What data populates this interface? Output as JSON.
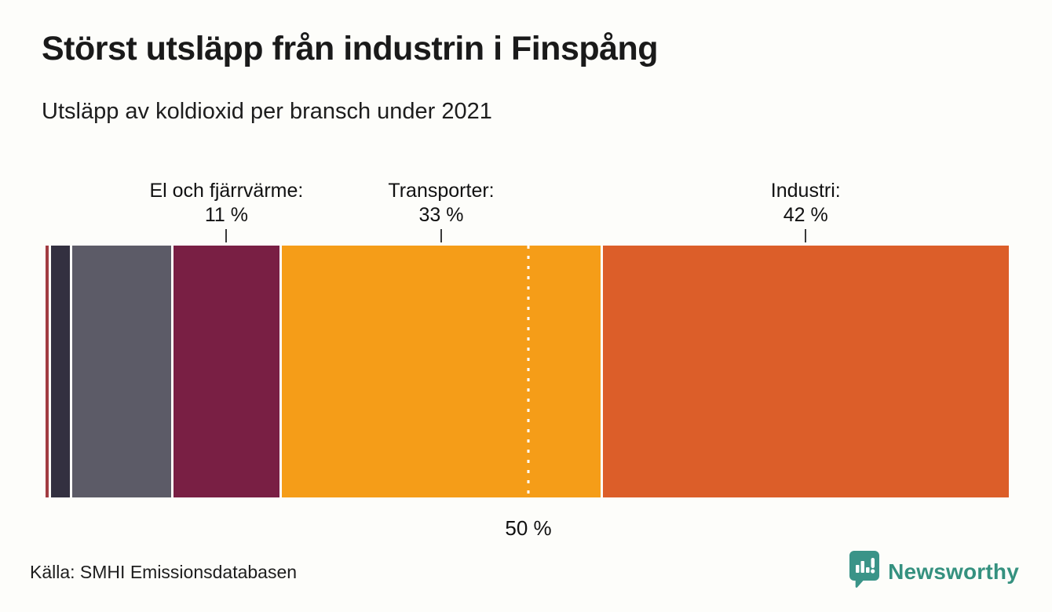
{
  "header": {
    "title": "Störst utsläpp från industrin i Finspång",
    "subtitle": "Utsläpp av koldioxid per bransch under 2021"
  },
  "chart_data": {
    "type": "bar",
    "variant": "horizontal-stacked-100-percent",
    "title": "Störst utsläpp från industrin i Finspång",
    "subtitle": "Utsläpp av koldioxid per bransch under 2021",
    "unit": "%",
    "xlim": [
      0,
      100
    ],
    "segments": [
      {
        "id": "unlabeled-1",
        "label": null,
        "value_label": null,
        "value": 0.3,
        "color": "#a23c42"
      },
      {
        "id": "unlabeled-2",
        "label": null,
        "value_label": null,
        "value": 2.0,
        "color": "#333040"
      },
      {
        "id": "unlabeled-3",
        "label": null,
        "value_label": null,
        "value": 10.2,
        "color": "#5c5b67"
      },
      {
        "id": "el-och-fjarrvarme",
        "label": "El och fjärrvärme:",
        "value_label": "11 %",
        "value": 11,
        "color": "#791f44"
      },
      {
        "id": "transporter",
        "label": "Transporter:",
        "value_label": "33 %",
        "value": 33,
        "color": "#f59d18"
      },
      {
        "id": "industri",
        "label": "Industri:",
        "value_label": "42 %",
        "value": 42,
        "color": "#dc5e29"
      }
    ],
    "marker": {
      "position_pct": 50,
      "label": "50 %"
    }
  },
  "footer": {
    "source": "Källa: SMHI Emissionsdatabasen",
    "brand": "Newsworthy",
    "brand_color": "#35917f",
    "brand_icon_color": "#3a9488"
  }
}
